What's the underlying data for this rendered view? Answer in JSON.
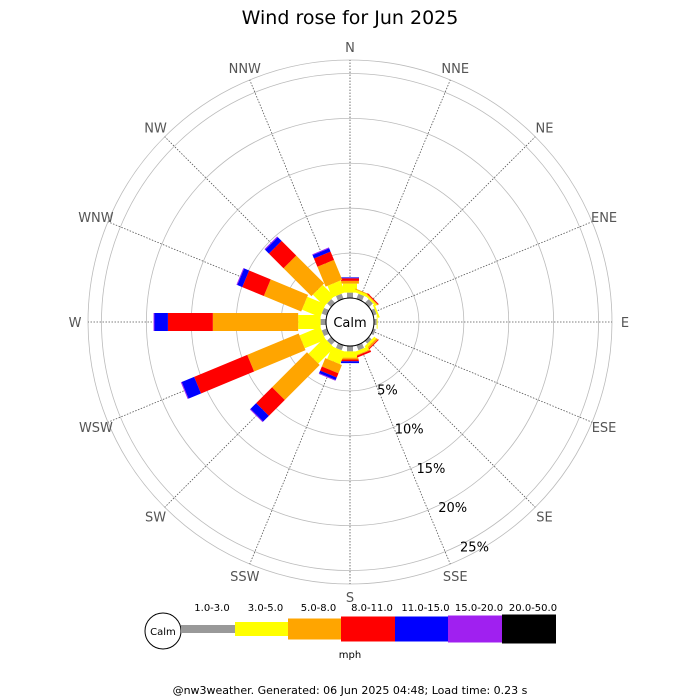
{
  "chart_data": {
    "type": "wind-rose",
    "title": "Wind rose for Jun 2025",
    "unit": "mph",
    "calm_label": "Calm",
    "directions": [
      "N",
      "NNE",
      "NE",
      "ENE",
      "E",
      "ESE",
      "SE",
      "SSE",
      "S",
      "SSW",
      "SW",
      "WSW",
      "W",
      "WNW",
      "NW",
      "NNW"
    ],
    "rings": [
      5,
      10,
      15,
      20,
      25
    ],
    "ring_labels": [
      "5%",
      "10%",
      "15%",
      "20%",
      "25%"
    ],
    "r_max": 26.5,
    "bins": [
      {
        "name": "1.0-3.0",
        "color": "#999999"
      },
      {
        "name": "3.0-5.0",
        "color": "#ffff00"
      },
      {
        "name": "5.0-8.0",
        "color": "#ffa500"
      },
      {
        "name": "8.0-11.0",
        "color": "#ff0000"
      },
      {
        "name": "11.0-15.0",
        "color": "#0000ff"
      },
      {
        "name": "15.0-20.0",
        "color": "#a020f0"
      },
      {
        "name": "20.0-50.0",
        "color": "#000000"
      }
    ],
    "values": [
      [
        0.6,
        1.0,
        0.3,
        0.3,
        0.1,
        0.0,
        0.0
      ],
      [
        0.6,
        0.3,
        0.1,
        0.0,
        0.0,
        0.0,
        0.0
      ],
      [
        0.6,
        0.2,
        0.1,
        0.1,
        0.0,
        0.0,
        0.0
      ],
      [
        0.4,
        0.2,
        0.0,
        0.0,
        0.0,
        0.0,
        0.0
      ],
      [
        0.3,
        0.1,
        0.0,
        0.0,
        0.0,
        0.0,
        0.0
      ],
      [
        0.3,
        0.0,
        0.0,
        0.0,
        0.0,
        0.0,
        0.0
      ],
      [
        0.4,
        0.3,
        0.2,
        0.1,
        0.0,
        0.0,
        0.0
      ],
      [
        0.6,
        0.4,
        0.1,
        0.2,
        0.0,
        0.0,
        0.0
      ],
      [
        0.6,
        0.7,
        0.2,
        0.2,
        0.2,
        0.0,
        0.0
      ],
      [
        0.6,
        1.5,
        1.0,
        0.5,
        0.3,
        0.1,
        0.0
      ],
      [
        0.6,
        2.5,
        5.5,
        2.5,
        0.9,
        0.1,
        0.0
      ],
      [
        0.6,
        2.5,
        6.2,
        6.4,
        1.5,
        0.1,
        0.0
      ],
      [
        0.6,
        2.5,
        9.5,
        5.0,
        1.5,
        0.1,
        0.0
      ],
      [
        0.6,
        2.2,
        4.5,
        2.6,
        0.6,
        0.1,
        0.0
      ],
      [
        0.6,
        1.8,
        4.4,
        2.3,
        0.6,
        0.1,
        0.0
      ],
      [
        0.6,
        1.4,
        2.4,
        1.0,
        0.4,
        0.1,
        0.0
      ]
    ]
  },
  "footer": "@nw3weather. Generated: 06 Jun 2025 04:48; Load time: 0.23 s"
}
